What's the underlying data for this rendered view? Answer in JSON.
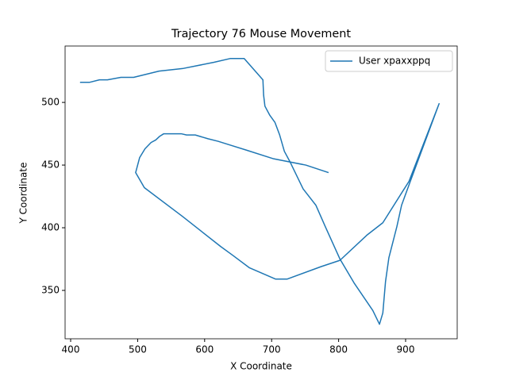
{
  "chart_data": {
    "type": "line",
    "title": "Trajectory 76 Mouse Movement",
    "xlabel": "X Coordinate",
    "ylabel": "Y Coordinate",
    "x": [
      414,
      428,
      443,
      455,
      475,
      494,
      532,
      567,
      614,
      638,
      659,
      687,
      688,
      690,
      697,
      705,
      712,
      719,
      728,
      747,
      766,
      780,
      802,
      823,
      851,
      861,
      866,
      870,
      875,
      887,
      894,
      907,
      950,
      905,
      866,
      842,
      802,
      774,
      723,
      706,
      667,
      642,
      624,
      567,
      510,
      497,
      503,
      511,
      520,
      527,
      533,
      539,
      549,
      565,
      573,
      586,
      605,
      620,
      638,
      662,
      703,
      751,
      785
    ],
    "series": [
      {
        "name": "User xpaxxppq",
        "color": "#1f77b4",
        "values": [
          516,
          516,
          518,
          518,
          520,
          520,
          525,
          527,
          532,
          535,
          535,
          518,
          506,
          497,
          490,
          484,
          474,
          461,
          452,
          431,
          418,
          401,
          375,
          356,
          334,
          323,
          332,
          357,
          376,
          401,
          418,
          437,
          499,
          437,
          404,
          394,
          374,
          369,
          359,
          359,
          368,
          378,
          385,
          409,
          432,
          444,
          456,
          463,
          468,
          470,
          473,
          475,
          475,
          475,
          474,
          474,
          471,
          469,
          466,
          462,
          455,
          450,
          444
        ]
      }
    ],
    "xlim": [
      391.7,
      977
    ],
    "ylim": [
      311.4,
      545
    ],
    "xticks": [
      400,
      500,
      600,
      700,
      800,
      900
    ],
    "yticks": [
      350,
      400,
      450,
      500
    ],
    "grid": false,
    "legend": "upper right"
  }
}
